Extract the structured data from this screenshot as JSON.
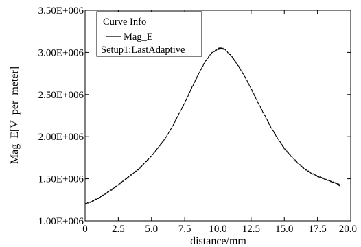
{
  "chart_data": {
    "type": "line",
    "title": "",
    "xlabel": "distance/mm",
    "ylabel": "Mag_E[V_per_meter]",
    "xlim": [
      0.0,
      20.0
    ],
    "ylim": [
      1000000,
      3500000
    ],
    "x_ticks": [
      0.0,
      2.5,
      5.0,
      7.5,
      10.0,
      12.5,
      15.0,
      17.5,
      20.0
    ],
    "x_tick_labels": [
      "0",
      "2.5",
      "5.0",
      "7.5",
      "10.0",
      "12.5",
      "15.0",
      "17.5",
      "20.0"
    ],
    "y_ticks": [
      1000000,
      1500000,
      2000000,
      2500000,
      3000000,
      3500000
    ],
    "y_tick_labels": [
      "1.00E+006",
      "1.50E+006",
      "2.00E+006",
      "2.50E+006",
      "3.00E+006",
      "3.50E+006"
    ],
    "grid": false,
    "legend": {
      "placement": "top-left",
      "title": "Curve Info",
      "entries": [
        {
          "name": "Mag_E",
          "subtitle": "Setup1:LastAdaptive"
        }
      ]
    },
    "series": [
      {
        "name": "Mag_E",
        "color": "#000000",
        "x": [
          0.0,
          0.5,
          1.0,
          1.5,
          2.0,
          2.5,
          3.0,
          3.5,
          4.0,
          4.5,
          5.0,
          5.5,
          6.0,
          6.5,
          7.0,
          7.5,
          8.0,
          8.5,
          9.0,
          9.5,
          10.0,
          10.2,
          10.5,
          11.0,
          11.5,
          12.0,
          12.5,
          13.0,
          13.5,
          14.0,
          14.5,
          15.0,
          15.5,
          16.0,
          16.5,
          17.0,
          17.5,
          18.0,
          18.5,
          19.0,
          19.2
        ],
        "y": [
          1200000,
          1230000,
          1270000,
          1320000,
          1370000,
          1430000,
          1490000,
          1550000,
          1610000,
          1690000,
          1770000,
          1870000,
          1970000,
          2100000,
          2250000,
          2400000,
          2570000,
          2730000,
          2880000,
          2990000,
          3040000,
          3050000,
          3040000,
          2960000,
          2850000,
          2720000,
          2570000,
          2410000,
          2260000,
          2110000,
          1980000,
          1860000,
          1770000,
          1690000,
          1620000,
          1570000,
          1530000,
          1500000,
          1470000,
          1440000,
          1420000
        ]
      }
    ]
  }
}
